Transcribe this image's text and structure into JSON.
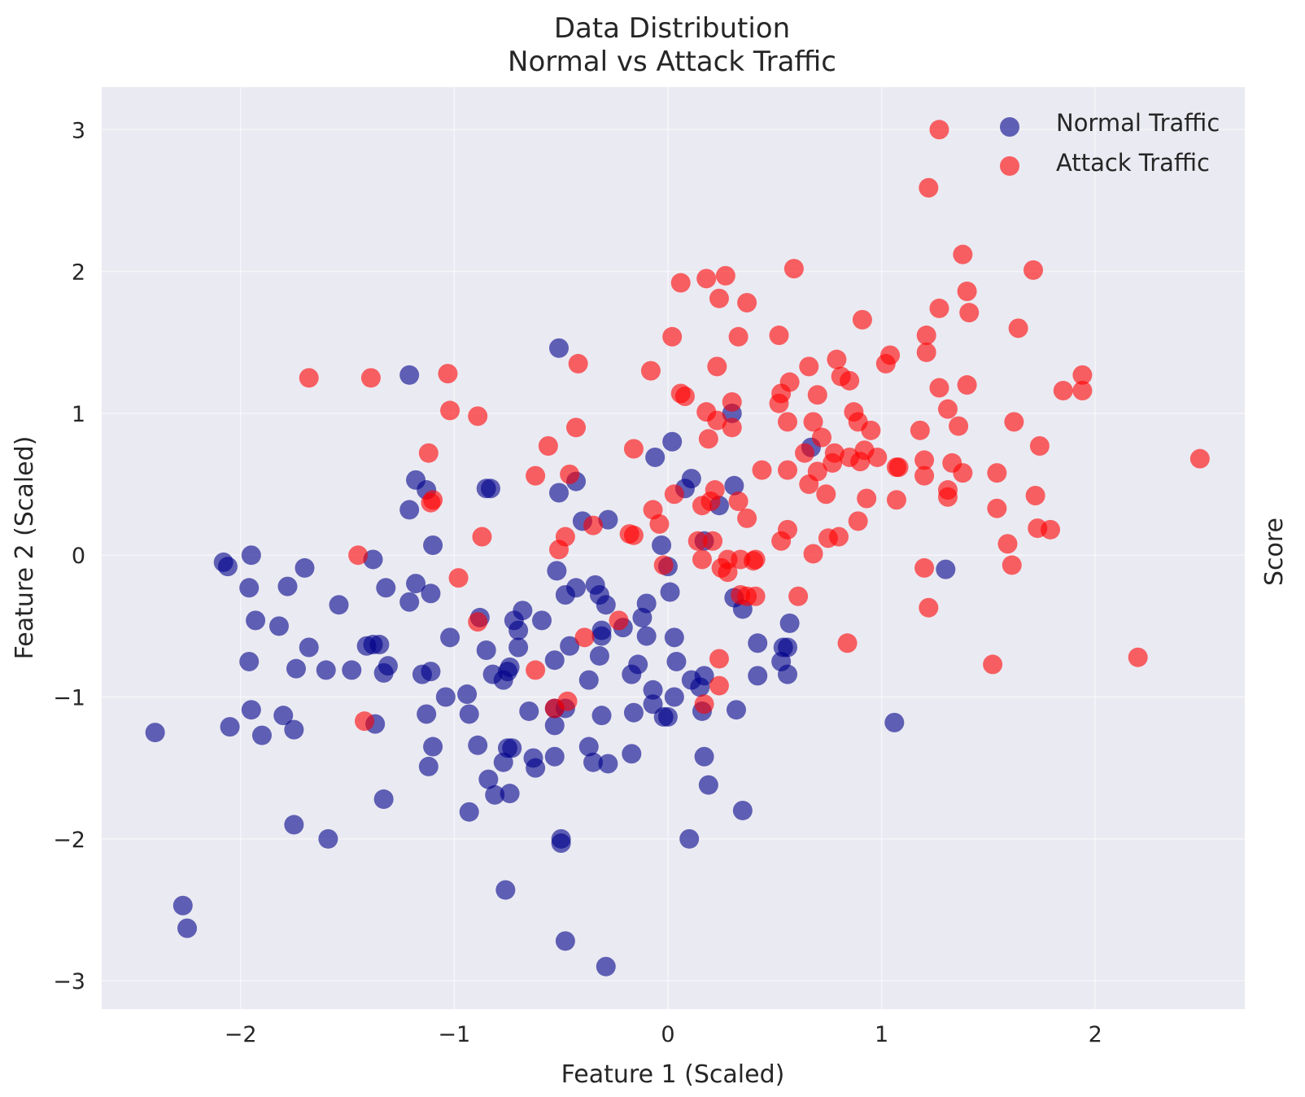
{
  "chart_data": {
    "type": "scatter",
    "title_lines": [
      "Data Distribution",
      "Normal vs Attack Traffic"
    ],
    "xlabel": "Feature 1 (Scaled)",
    "ylabel": "Feature 2 (Scaled)",
    "right_label": "Score",
    "xlim": [
      -2.65,
      2.7
    ],
    "ylim": [
      -3.2,
      3.3
    ],
    "xticks": [
      -2,
      -1,
      0,
      1,
      2
    ],
    "yticks": [
      -3,
      -2,
      -1,
      0,
      1,
      2,
      3
    ],
    "xtick_labels": [
      "−2",
      "−1",
      "0",
      "1",
      "2"
    ],
    "ytick_labels": [
      "−3",
      "−2",
      "−1",
      "0",
      "1",
      "2",
      "3"
    ],
    "grid": true,
    "legend_position": "top-right",
    "background": "#eaeaf2",
    "series": [
      {
        "name": "Normal Traffic",
        "color": "#00008b",
        "opacity": 0.6,
        "points": [
          [
            -2.4,
            -1.25
          ],
          [
            -2.27,
            -2.47
          ],
          [
            -2.25,
            -2.63
          ],
          [
            -2.08,
            -0.05
          ],
          [
            -2.06,
            -0.08
          ],
          [
            -2.05,
            -1.21
          ],
          [
            -1.95,
            0.0
          ],
          [
            -1.96,
            -0.23
          ],
          [
            -1.93,
            -0.46
          ],
          [
            -1.96,
            -0.75
          ],
          [
            -1.95,
            -1.09
          ],
          [
            -1.9,
            -1.27
          ],
          [
            -1.82,
            -0.5
          ],
          [
            -1.8,
            -1.13
          ],
          [
            -1.78,
            -0.22
          ],
          [
            -1.75,
            -1.23
          ],
          [
            -1.74,
            -0.8
          ],
          [
            -1.75,
            -1.9
          ],
          [
            -1.7,
            -0.09
          ],
          [
            -1.68,
            -0.65
          ],
          [
            -1.6,
            -0.81
          ],
          [
            -1.59,
            -2.0
          ],
          [
            -1.54,
            -0.35
          ],
          [
            -1.48,
            -0.81
          ],
          [
            -1.41,
            -0.64
          ],
          [
            -1.38,
            -0.63
          ],
          [
            -1.35,
            -0.63
          ],
          [
            -1.33,
            -0.83
          ],
          [
            -1.31,
            -0.78
          ],
          [
            -1.38,
            -0.03
          ],
          [
            -1.32,
            -0.23
          ],
          [
            -1.37,
            -1.19
          ],
          [
            -1.33,
            -1.72
          ],
          [
            -1.21,
            1.27
          ],
          [
            -1.21,
            0.32
          ],
          [
            -1.18,
            0.53
          ],
          [
            -1.21,
            -0.33
          ],
          [
            -1.18,
            -0.2
          ],
          [
            -1.11,
            -0.27
          ],
          [
            -1.15,
            -0.84
          ],
          [
            -1.11,
            -0.82
          ],
          [
            -1.13,
            -1.12
          ],
          [
            -1.1,
            -1.35
          ],
          [
            -1.12,
            -1.49
          ],
          [
            -1.13,
            0.46
          ],
          [
            -1.1,
            0.07
          ],
          [
            -1.02,
            -0.58
          ],
          [
            -1.04,
            -1.0
          ],
          [
            -0.94,
            -0.98
          ],
          [
            -0.93,
            -1.12
          ],
          [
            -0.89,
            -1.34
          ],
          [
            -0.93,
            -1.81
          ],
          [
            -0.88,
            -0.44
          ],
          [
            -0.85,
            -0.67
          ],
          [
            -0.85,
            0.47
          ],
          [
            -0.83,
            0.47
          ],
          [
            -0.82,
            -0.84
          ],
          [
            -0.77,
            -0.88
          ],
          [
            -0.75,
            -0.82
          ],
          [
            -0.74,
            -0.79
          ],
          [
            -0.77,
            -1.46
          ],
          [
            -0.75,
            -1.36
          ],
          [
            -0.73,
            -1.36
          ],
          [
            -0.84,
            -1.58
          ],
          [
            -0.81,
            -1.69
          ],
          [
            -0.74,
            -1.68
          ],
          [
            -0.76,
            -2.36
          ],
          [
            -0.72,
            -0.46
          ],
          [
            -0.7,
            -0.53
          ],
          [
            -0.68,
            -0.39
          ],
          [
            -0.7,
            -0.65
          ],
          [
            -0.65,
            -1.1
          ],
          [
            -0.63,
            -1.43
          ],
          [
            -0.62,
            -1.5
          ],
          [
            -0.59,
            -0.46
          ],
          [
            -0.53,
            -0.74
          ],
          [
            -0.53,
            -1.08
          ],
          [
            -0.53,
            -1.2
          ],
          [
            -0.53,
            -1.42
          ],
          [
            -0.52,
            -0.11
          ],
          [
            -0.51,
            0.44
          ],
          [
            -0.51,
            1.46
          ],
          [
            -0.5,
            -2.0
          ],
          [
            -0.5,
            -2.03
          ],
          [
            -0.48,
            -0.28
          ],
          [
            -0.46,
            -0.64
          ],
          [
            -0.48,
            -1.08
          ],
          [
            -0.48,
            -2.72
          ],
          [
            -0.43,
            -0.23
          ],
          [
            -0.43,
            0.52
          ],
          [
            -0.4,
            0.24
          ],
          [
            -0.37,
            -0.88
          ],
          [
            -0.37,
            -1.35
          ],
          [
            -0.35,
            -1.46
          ],
          [
            -0.34,
            -0.21
          ],
          [
            -0.32,
            -0.28
          ],
          [
            -0.31,
            -0.53
          ],
          [
            -0.31,
            -0.57
          ],
          [
            -0.32,
            -0.71
          ],
          [
            -0.31,
            -1.13
          ],
          [
            -0.29,
            -0.35
          ],
          [
            -0.28,
            0.25
          ],
          [
            -0.28,
            -1.47
          ],
          [
            -0.29,
            -2.9
          ],
          [
            -0.21,
            -0.51
          ],
          [
            -0.17,
            -0.84
          ],
          [
            -0.14,
            -0.77
          ],
          [
            -0.16,
            -1.11
          ],
          [
            -0.17,
            -1.4
          ],
          [
            -0.12,
            -0.44
          ],
          [
            -0.1,
            -0.34
          ],
          [
            -0.1,
            -0.57
          ],
          [
            -0.07,
            -0.95
          ],
          [
            -0.07,
            -1.05
          ],
          [
            -0.06,
            0.69
          ],
          [
            -0.03,
            0.07
          ],
          [
            -0.02,
            -1.14
          ],
          [
            0.0,
            -1.14
          ],
          [
            0.0,
            -0.08
          ],
          [
            0.01,
            -0.26
          ],
          [
            0.02,
            0.8
          ],
          [
            0.03,
            -0.58
          ],
          [
            0.04,
            -0.75
          ],
          [
            0.03,
            -1.0
          ],
          [
            0.08,
            0.47
          ],
          [
            0.11,
            0.54
          ],
          [
            0.11,
            -0.88
          ],
          [
            0.1,
            -2.0
          ],
          [
            0.15,
            -0.93
          ],
          [
            0.16,
            -1.1
          ],
          [
            0.17,
            -0.85
          ],
          [
            0.17,
            0.1
          ],
          [
            0.17,
            -1.42
          ],
          [
            0.19,
            -1.62
          ],
          [
            0.24,
            0.35
          ],
          [
            0.3,
            1.0
          ],
          [
            0.31,
            0.49
          ],
          [
            0.31,
            -0.3
          ],
          [
            0.32,
            -1.09
          ],
          [
            0.35,
            -0.38
          ],
          [
            0.35,
            -1.8
          ],
          [
            0.42,
            -0.62
          ],
          [
            0.42,
            -0.85
          ],
          [
            0.53,
            -0.75
          ],
          [
            0.54,
            -0.65
          ],
          [
            0.56,
            -0.65
          ],
          [
            0.56,
            -0.84
          ],
          [
            0.57,
            -0.48
          ],
          [
            0.67,
            0.76
          ],
          [
            1.06,
            -1.18
          ],
          [
            1.3,
            -0.1
          ]
        ]
      },
      {
        "name": "Attack Traffic",
        "color": "#ff0000",
        "opacity": 0.6,
        "points": [
          [
            -1.68,
            1.25
          ],
          [
            -1.39,
            1.25
          ],
          [
            -1.45,
            0.0
          ],
          [
            -1.42,
            -1.17
          ],
          [
            -1.12,
            0.72
          ],
          [
            -1.1,
            0.39
          ],
          [
            -1.11,
            0.37
          ],
          [
            -1.03,
            1.28
          ],
          [
            -1.02,
            1.02
          ],
          [
            -0.98,
            -0.16
          ],
          [
            -0.89,
            0.98
          ],
          [
            -0.89,
            -0.47
          ],
          [
            -0.87,
            0.13
          ],
          [
            -0.62,
            0.56
          ],
          [
            -0.62,
            -0.81
          ],
          [
            -0.56,
            0.77
          ],
          [
            -0.53,
            -1.08
          ],
          [
            -0.51,
            0.04
          ],
          [
            -0.47,
            -1.03
          ],
          [
            -0.48,
            0.13
          ],
          [
            -0.46,
            0.57
          ],
          [
            -0.42,
            1.35
          ],
          [
            -0.43,
            0.9
          ],
          [
            -0.39,
            -0.58
          ],
          [
            -0.35,
            0.21
          ],
          [
            -0.23,
            -0.46
          ],
          [
            -0.18,
            0.15
          ],
          [
            -0.16,
            0.14
          ],
          [
            -0.16,
            0.75
          ],
          [
            -0.08,
            1.3
          ],
          [
            -0.07,
            0.32
          ],
          [
            -0.04,
            0.22
          ],
          [
            -0.02,
            -0.07
          ],
          [
            0.02,
            1.54
          ],
          [
            0.03,
            0.43
          ],
          [
            0.06,
            1.92
          ],
          [
            0.06,
            1.14
          ],
          [
            0.08,
            1.12
          ],
          [
            0.14,
            0.1
          ],
          [
            0.16,
            -0.03
          ],
          [
            0.16,
            0.35
          ],
          [
            0.17,
            -1.05
          ],
          [
            0.18,
            1.95
          ],
          [
            0.18,
            1.01
          ],
          [
            0.19,
            0.82
          ],
          [
            0.2,
            0.38
          ],
          [
            0.21,
            0.1
          ],
          [
            0.22,
            0.46
          ],
          [
            0.23,
            1.33
          ],
          [
            0.23,
            0.95
          ],
          [
            0.24,
            1.81
          ],
          [
            0.24,
            -0.73
          ],
          [
            0.24,
            -0.92
          ],
          [
            0.25,
            -0.09
          ],
          [
            0.27,
            1.97
          ],
          [
            0.28,
            -0.12
          ],
          [
            0.28,
            -0.03
          ],
          [
            0.3,
            1.08
          ],
          [
            0.3,
            0.9
          ],
          [
            0.33,
            1.54
          ],
          [
            0.33,
            0.38
          ],
          [
            0.34,
            -0.03
          ],
          [
            0.34,
            -0.28
          ],
          [
            0.37,
            1.78
          ],
          [
            0.37,
            0.26
          ],
          [
            0.37,
            -0.29
          ],
          [
            0.4,
            -0.04
          ],
          [
            0.41,
            -0.03
          ],
          [
            0.41,
            -0.29
          ],
          [
            0.44,
            0.6
          ],
          [
            0.52,
            1.55
          ],
          [
            0.52,
            1.07
          ],
          [
            0.53,
            1.14
          ],
          [
            0.53,
            0.1
          ],
          [
            0.56,
            0.94
          ],
          [
            0.56,
            0.6
          ],
          [
            0.56,
            0.18
          ],
          [
            0.57,
            1.22
          ],
          [
            0.59,
            2.02
          ],
          [
            0.61,
            -0.29
          ],
          [
            0.64,
            0.72
          ],
          [
            0.66,
            0.5
          ],
          [
            0.66,
            1.33
          ],
          [
            0.68,
            0.94
          ],
          [
            0.68,
            0.01
          ],
          [
            0.7,
            0.59
          ],
          [
            0.7,
            1.13
          ],
          [
            0.72,
            0.83
          ],
          [
            0.74,
            0.43
          ],
          [
            0.75,
            0.12
          ],
          [
            0.77,
            0.65
          ],
          [
            0.78,
            0.72
          ],
          [
            0.79,
            1.38
          ],
          [
            0.8,
            0.13
          ],
          [
            0.81,
            1.26
          ],
          [
            0.84,
            -0.62
          ],
          [
            0.85,
            1.23
          ],
          [
            0.85,
            0.69
          ],
          [
            0.87,
            1.01
          ],
          [
            0.89,
            0.94
          ],
          [
            0.89,
            0.24
          ],
          [
            0.9,
            0.66
          ],
          [
            0.91,
            1.66
          ],
          [
            0.92,
            0.74
          ],
          [
            0.93,
            0.4
          ],
          [
            0.95,
            0.88
          ],
          [
            0.98,
            0.69
          ],
          [
            1.02,
            1.35
          ],
          [
            1.04,
            1.41
          ],
          [
            1.07,
            0.62
          ],
          [
            1.08,
            0.62
          ],
          [
            1.07,
            0.39
          ],
          [
            1.18,
            0.88
          ],
          [
            1.2,
            0.56
          ],
          [
            1.2,
            0.67
          ],
          [
            1.21,
            1.55
          ],
          [
            1.21,
            1.43
          ],
          [
            1.2,
            -0.09
          ],
          [
            1.22,
            2.59
          ],
          [
            1.22,
            -0.37
          ],
          [
            1.27,
            3.0
          ],
          [
            1.27,
            1.74
          ],
          [
            1.27,
            1.18
          ],
          [
            1.31,
            1.03
          ],
          [
            1.31,
            0.46
          ],
          [
            1.31,
            0.41
          ],
          [
            1.33,
            0.65
          ],
          [
            1.36,
            0.91
          ],
          [
            1.38,
            2.12
          ],
          [
            1.38,
            0.58
          ],
          [
            1.4,
            1.86
          ],
          [
            1.4,
            1.2
          ],
          [
            1.41,
            1.71
          ],
          [
            1.52,
            -0.77
          ],
          [
            1.54,
            0.58
          ],
          [
            1.54,
            0.33
          ],
          [
            1.59,
            0.08
          ],
          [
            1.61,
            -0.07
          ],
          [
            1.62,
            0.94
          ],
          [
            1.64,
            1.6
          ],
          [
            1.71,
            2.01
          ],
          [
            1.72,
            0.42
          ],
          [
            1.73,
            0.19
          ],
          [
            1.74,
            0.77
          ],
          [
            1.79,
            0.18
          ],
          [
            1.85,
            1.16
          ],
          [
            1.94,
            1.27
          ],
          [
            1.94,
            1.16
          ],
          [
            2.2,
            -0.72
          ],
          [
            2.49,
            0.68
          ]
        ]
      }
    ]
  }
}
